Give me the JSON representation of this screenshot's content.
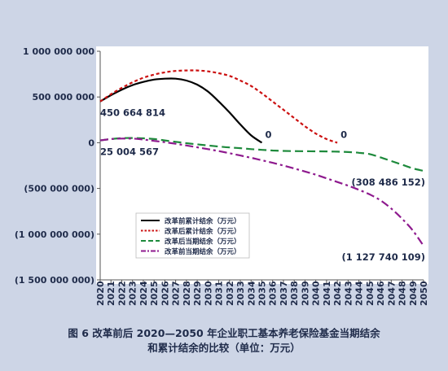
{
  "caption": {
    "line1": "图 6   改革前后 2020—2050 年企业职工基本养老保险基金当期结余",
    "line2": "和累计结余的比较（单位：万元）"
  },
  "colors": {
    "background": "#cdd5e6",
    "plot_background": "#ffffff",
    "before_cumulative": "#000000",
    "after_cumulative": "#cc1111",
    "after_current": "#1e8a3c",
    "before_current": "#8e1a8e"
  },
  "chart_data": {
    "type": "line",
    "title": "",
    "xlabel": "",
    "ylabel": "",
    "x": [
      2020,
      2021,
      2022,
      2023,
      2024,
      2025,
      2026,
      2027,
      2028,
      2029,
      2030,
      2031,
      2032,
      2033,
      2034,
      2035,
      2036,
      2037,
      2038,
      2039,
      2040,
      2041,
      2042,
      2043,
      2044,
      2045,
      2046,
      2047,
      2048,
      2049,
      2050
    ],
    "ylim": [
      -1500000000,
      1000000000
    ],
    "yticks": [
      1000000000,
      500000000,
      0,
      -500000000,
      -1000000000,
      -1500000000
    ],
    "ytick_labels": [
      "1 000 000 000",
      "500 000 000",
      "0",
      "(500 000 000)",
      "(1 000 000 000)",
      "(1 500 000 000)"
    ],
    "grid": false,
    "legend_position": "lower-left",
    "series": [
      {
        "name": "改革前累计结余（万元）",
        "style": "solid",
        "x": [
          2020,
          2021,
          2022,
          2023,
          2024,
          2025,
          2026,
          2027,
          2028,
          2029,
          2030,
          2031,
          2032,
          2033,
          2034,
          2035
        ],
        "values": [
          450664814,
          520000000,
          580000000,
          630000000,
          665000000,
          690000000,
          700000000,
          700000000,
          680000000,
          635000000,
          560000000,
          450000000,
          330000000,
          200000000,
          80000000,
          0
        ]
      },
      {
        "name": "改革后累计结余（万元）",
        "style": "dotted",
        "x": [
          2020,
          2021,
          2022,
          2023,
          2024,
          2025,
          2026,
          2027,
          2028,
          2029,
          2030,
          2031,
          2032,
          2033,
          2034,
          2035,
          2036,
          2037,
          2038,
          2039,
          2040,
          2041,
          2042
        ],
        "values": [
          450664814,
          530000000,
          600000000,
          660000000,
          710000000,
          745000000,
          770000000,
          785000000,
          790000000,
          790000000,
          780000000,
          760000000,
          730000000,
          680000000,
          620000000,
          540000000,
          450000000,
          360000000,
          270000000,
          180000000,
          100000000,
          40000000,
          0
        ]
      },
      {
        "name": "改革后当期结余（万元）",
        "style": "dashed",
        "x": [
          2020,
          2021,
          2022,
          2023,
          2024,
          2025,
          2026,
          2027,
          2028,
          2029,
          2030,
          2031,
          2032,
          2033,
          2034,
          2035,
          2036,
          2037,
          2038,
          2039,
          2040,
          2041,
          2042,
          2043,
          2044,
          2045,
          2046,
          2047,
          2048,
          2049,
          2050
        ],
        "values": [
          25004567,
          40000000,
          50000000,
          52000000,
          48000000,
          40000000,
          25000000,
          10000000,
          -5000000,
          -18000000,
          -30000000,
          -42000000,
          -52000000,
          -60000000,
          -70000000,
          -78000000,
          -85000000,
          -90000000,
          -92000000,
          -93000000,
          -94000000,
          -95000000,
          -98000000,
          -102000000,
          -110000000,
          -125000000,
          -160000000,
          -200000000,
          -240000000,
          -280000000,
          -308486152
        ]
      },
      {
        "name": "改革前当期结余（万元）",
        "style": "dashdot",
        "x": [
          2020,
          2021,
          2022,
          2023,
          2024,
          2025,
          2026,
          2027,
          2028,
          2029,
          2030,
          2031,
          2032,
          2033,
          2034,
          2035,
          2036,
          2037,
          2038,
          2039,
          2040,
          2041,
          2042,
          2043,
          2044,
          2045,
          2046,
          2047,
          2048,
          2049,
          2050
        ],
        "values": [
          25004567,
          40000000,
          45000000,
          45000000,
          35000000,
          20000000,
          5000000,
          -12000000,
          -30000000,
          -50000000,
          -70000000,
          -92000000,
          -115000000,
          -140000000,
          -165000000,
          -192000000,
          -220000000,
          -250000000,
          -282000000,
          -315000000,
          -350000000,
          -390000000,
          -430000000,
          -470000000,
          -515000000,
          -565000000,
          -630000000,
          -720000000,
          -830000000,
          -960000000,
          -1127740109
        ]
      }
    ],
    "annotations": [
      {
        "text": "450 664 814",
        "x": 2020,
        "y": 450664814,
        "anchor": "below-right"
      },
      {
        "text": "25 004 567",
        "x": 2020,
        "y": 25004567,
        "anchor": "below-right"
      },
      {
        "text": "0",
        "x": 2035,
        "y": 0,
        "anchor": "above-right"
      },
      {
        "text": "0",
        "x": 2042,
        "y": 0,
        "anchor": "above-right"
      },
      {
        "text": "(308 486 152)",
        "x": 2050,
        "y": -308486152,
        "anchor": "below-left"
      },
      {
        "text": "(1 127 740 109)",
        "x": 2050,
        "y": -1127740109,
        "anchor": "below-left"
      }
    ]
  }
}
